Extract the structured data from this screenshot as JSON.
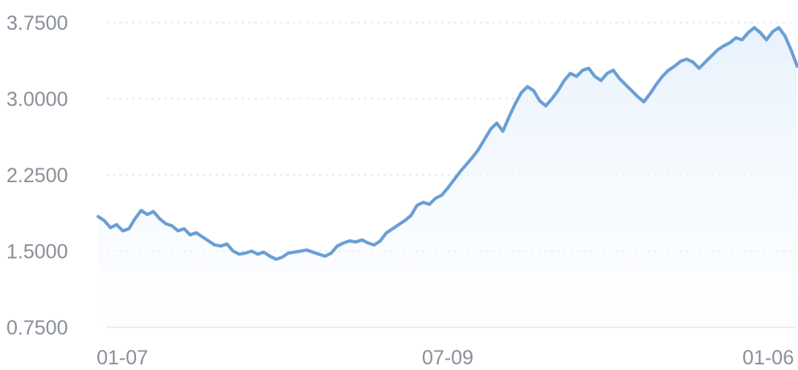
{
  "chart_data": {
    "type": "area",
    "title": "",
    "xlabel": "",
    "ylabel": "",
    "x_tick_labels": [
      "01-07",
      "07-09",
      "01-06"
    ],
    "y_tick_labels": [
      "3.7500",
      "3.0000",
      "2.2500",
      "1.5000",
      "0.7500"
    ],
    "y_ticks": [
      3.75,
      3.0,
      2.25,
      1.5,
      0.75
    ],
    "ylim": [
      0.75,
      3.75
    ],
    "grid": "horizontal dotted",
    "legend": "none",
    "line_color": "#6a9fd4",
    "fill_color": "#eaf3fb",
    "series": [
      {
        "values": [
          1.84,
          1.8,
          1.73,
          1.76,
          1.7,
          1.72,
          1.82,
          1.9,
          1.86,
          1.89,
          1.82,
          1.77,
          1.75,
          1.7,
          1.72,
          1.66,
          1.68,
          1.64,
          1.6,
          1.56,
          1.55,
          1.57,
          1.5,
          1.47,
          1.48,
          1.5,
          1.47,
          1.49,
          1.45,
          1.42,
          1.44,
          1.48,
          1.49,
          1.5,
          1.51,
          1.49,
          1.47,
          1.45,
          1.48,
          1.55,
          1.58,
          1.6,
          1.59,
          1.61,
          1.58,
          1.56,
          1.6,
          1.68,
          1.72,
          1.76,
          1.8,
          1.85,
          1.95,
          1.98,
          1.96,
          2.02,
          2.05,
          2.12,
          2.2,
          2.28,
          2.35,
          2.42,
          2.5,
          2.6,
          2.7,
          2.76,
          2.68,
          2.82,
          2.95,
          3.06,
          3.12,
          3.08,
          2.98,
          2.93,
          3.0,
          3.08,
          3.18,
          3.25,
          3.22,
          3.28,
          3.3,
          3.22,
          3.18,
          3.25,
          3.28,
          3.2,
          3.14,
          3.08,
          3.02,
          2.97,
          3.05,
          3.14,
          3.22,
          3.28,
          3.32,
          3.37,
          3.39,
          3.36,
          3.3,
          3.36,
          3.42,
          3.48,
          3.52,
          3.55,
          3.6,
          3.58,
          3.65,
          3.7,
          3.65,
          3.58,
          3.66,
          3.7,
          3.62,
          3.48,
          3.32
        ]
      }
    ]
  }
}
